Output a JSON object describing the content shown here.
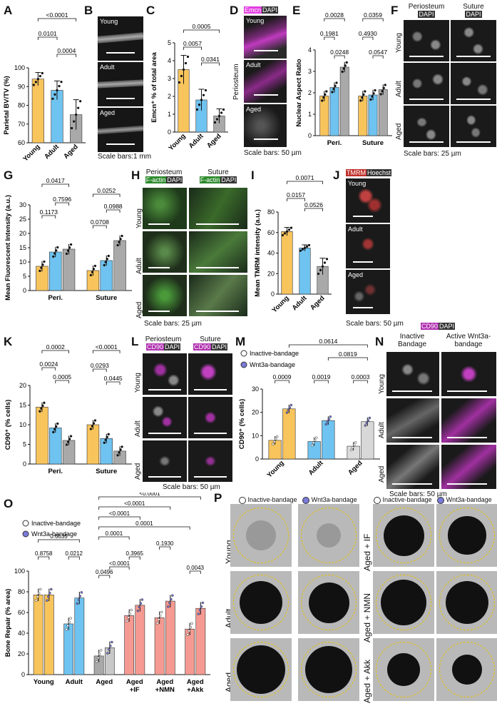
{
  "colors": {
    "young": "#f8c45c",
    "adult": "#6fc3f0",
    "aged": "#a9a9a9",
    "treated": "#f59a92",
    "inactive": "#ffffff",
    "wnt": "#7a7ad8",
    "magenta": "#e33ce1",
    "green": "#4caf50",
    "tmrm": "#e04040"
  },
  "panels": {
    "A": {
      "letter": "A",
      "ylabel": "Parietal BV/TV (%)",
      "groups": [
        "Young",
        "Adult",
        "Aged"
      ],
      "pvals": [
        "<0.0001",
        "0.0101",
        "0.0004"
      ]
    },
    "B": {
      "letter": "B",
      "rows": [
        "Young",
        "Adult",
        "Aged"
      ],
      "scale": "Scale bars:1 mm"
    },
    "C": {
      "letter": "C",
      "ylabel": "Emcn⁺ % of total area",
      "groups": [
        "Young",
        "Adult",
        "Aged"
      ],
      "pvals": [
        "0.0005",
        "0.0057",
        "0.0341"
      ]
    },
    "D": {
      "letter": "D",
      "tag1": "Emcn",
      "tag2": "DAPI",
      "rows": [
        "Young",
        "Adult",
        "Aged"
      ],
      "side": "Periosteum",
      "scale": "Scale bars: 50 µm"
    },
    "E": {
      "letter": "E",
      "ylabel": "Nuclear Aspect Ratio",
      "groups": [
        "Peri.",
        "Suture"
      ],
      "pvals": [
        "0.0028",
        "0.0359",
        "0.1981",
        "0.4930",
        "0.0248",
        "0.0547"
      ]
    },
    "F": {
      "letter": "F",
      "cols": [
        "Periosteum",
        "Suture"
      ],
      "tag": "DAPI",
      "rows": [
        "Young",
        "Adult",
        "Aged"
      ],
      "scale": "Scale bars: 25 µm"
    },
    "G": {
      "letter": "G",
      "ylabel": "Mean Fluorescent Intensity (a.u.)",
      "groups": [
        "Peri.",
        "Suture"
      ],
      "pvals": [
        "0.0417",
        "0.7596",
        "0.0252",
        "0.1173",
        "0.0988",
        "0.0708"
      ]
    },
    "H": {
      "letter": "H",
      "cols": [
        "Periosteum",
        "Suture"
      ],
      "tag1": "F-actin",
      "tag2": "DAPI",
      "rows": [
        "Young",
        "Adult",
        "Aged"
      ],
      "scale": "Scale bars: 25 µm"
    },
    "I": {
      "letter": "I",
      "ylabel": "Mean TMRM intensity (a.u.)",
      "groups": [
        "Young",
        "Adult",
        "Aged"
      ],
      "pvals": [
        "0.0071",
        "0.0157",
        "0.0526"
      ]
    },
    "J": {
      "letter": "J",
      "tag1": "TMRM",
      "tag2": "Hoechst",
      "rows": [
        "Young",
        "Adult",
        "Aged"
      ],
      "scale": "Scale bars: 50 µm"
    },
    "K": {
      "letter": "K",
      "ylabel": "CD90⁺ (% cells)",
      "groups": [
        "Peri.",
        "Suture"
      ],
      "pvals": [
        "0.0002",
        "<0.0001",
        "0.0024",
        "0.0005",
        "0.0293",
        "0.0445"
      ]
    },
    "L": {
      "letter": "L",
      "cols": [
        "Periosteum",
        "Suture"
      ],
      "tag1": "CD90",
      "tag2": "DAPI",
      "rows": [
        "Young",
        "Adult",
        "Aged"
      ],
      "scale": "Scale bars: 50 µm"
    },
    "M": {
      "letter": "M",
      "ylabel": "CD90⁺ (% cells)",
      "groups": [
        "Young",
        "Adult",
        "Aged"
      ],
      "legend": [
        "Inactive-bandage",
        "Wnt3a-bandage"
      ],
      "pvals": [
        "0.0614",
        "0.0819",
        "0.0009",
        "0.0019",
        "0.0003"
      ]
    },
    "N": {
      "letter": "N",
      "tag1": "CD90",
      "tag2": "DAPI",
      "cols": [
        "Inactive Bandage",
        "Active Wnt3a-bandage"
      ],
      "rows": [
        "Young",
        "Adult",
        "Aged"
      ],
      "scale": "Scale bars: 50 µm"
    },
    "O": {
      "letter": "O",
      "ylabel": "Bone Repair (% area)",
      "groups": [
        "Young",
        "Adult",
        "Aged",
        "Aged + IF",
        "Aged +NMN",
        "Aged +Akk"
      ],
      "legend": [
        "Inactive-bandage",
        "Wnt3a-bandage"
      ],
      "pvals": [
        "<0.0001",
        "<0.0001",
        "<0.0001",
        "0.0001",
        "0.0001",
        "0.1930",
        "0.3965",
        "0.0043",
        "0.6635",
        "0.8758",
        "0.0212",
        "0.0496",
        "<0.0001"
      ]
    },
    "P": {
      "letter": "P",
      "legend": [
        "Inactive-bandage",
        "Wnt3a-bandage"
      ],
      "rowsLeft": [
        "Young",
        "Adult",
        "Aged"
      ],
      "rowsRight": [
        "Aged + IF",
        "Aged + NMN",
        "Aged + Akk"
      ]
    }
  },
  "chart_data": [
    {
      "type": "bar",
      "panel": "A",
      "categories": [
        "Young",
        "Adult",
        "Aged"
      ],
      "values": [
        94,
        88,
        75
      ],
      "errors": [
        3.5,
        5,
        8
      ],
      "ylim": [
        60,
        100
      ],
      "yticks": [
        60,
        70,
        80,
        90,
        100
      ]
    },
    {
      "type": "bar",
      "panel": "C",
      "categories": [
        "Young",
        "Adult",
        "Aged"
      ],
      "values": [
        3.5,
        1.8,
        0.9
      ],
      "errors": [
        0.8,
        0.6,
        0.4
      ],
      "ylim": [
        0,
        5
      ],
      "yticks": [
        0,
        1,
        2,
        3,
        4,
        5
      ]
    },
    {
      "type": "bar",
      "panel": "E",
      "categories": [
        "Peri.",
        "Suture"
      ],
      "series": [
        {
          "name": "Young",
          "values": [
            1.85,
            1.85
          ]
        },
        {
          "name": "Adult",
          "values": [
            2.25,
            1.9
          ]
        },
        {
          "name": "Aged",
          "values": [
            3.2,
            2.15
          ]
        }
      ],
      "ylim": [
        0,
        4
      ],
      "yticks": [
        0,
        1,
        2,
        3,
        4
      ]
    },
    {
      "type": "bar",
      "panel": "G",
      "categories": [
        "Peri.",
        "Suture"
      ],
      "series": [
        {
          "name": "Young",
          "values": [
            8.5,
            7
          ]
        },
        {
          "name": "Adult",
          "values": [
            13.5,
            10.5
          ]
        },
        {
          "name": "Aged",
          "values": [
            14.5,
            17.5
          ]
        }
      ],
      "ylim": [
        0,
        30
      ],
      "yticks": [
        0,
        5,
        10,
        15,
        20,
        25,
        30
      ]
    },
    {
      "type": "bar",
      "panel": "I",
      "categories": [
        "Young",
        "Adult",
        "Aged"
      ],
      "values": [
        61,
        45,
        27
      ],
      "errors": [
        4,
        3,
        8
      ],
      "ylim": [
        0,
        80
      ],
      "yticks": [
        0,
        20,
        40,
        60,
        80
      ]
    },
    {
      "type": "bar",
      "panel": "K",
      "categories": [
        "Peri.",
        "Suture"
      ],
      "series": [
        {
          "name": "Young",
          "values": [
            14.5,
            10
          ]
        },
        {
          "name": "Adult",
          "values": [
            9.2,
            6.5
          ]
        },
        {
          "name": "Aged",
          "values": [
            6,
            3.3
          ]
        }
      ],
      "ylim": [
        0,
        20
      ],
      "yticks": [
        0,
        5,
        10,
        15,
        20
      ]
    },
    {
      "type": "bar",
      "panel": "M",
      "categories": [
        "Young",
        "Adult",
        "Aged"
      ],
      "series": [
        {
          "name": "Inactive-bandage",
          "values": [
            8,
            7.5,
            5.5
          ]
        },
        {
          "name": "Wnt3a-bandage",
          "values": [
            21.5,
            16.5,
            16
          ]
        }
      ],
      "ylim": [
        0,
        30
      ],
      "yticks": [
        0,
        10,
        20,
        30
      ]
    },
    {
      "type": "bar",
      "panel": "O",
      "categories": [
        "Young",
        "Adult",
        "Aged",
        "Aged +IF",
        "Aged +NMN",
        "Aged +Akk"
      ],
      "series": [
        {
          "name": "Inactive-bandage",
          "values": [
            77,
            49,
            18,
            57,
            55,
            44
          ]
        },
        {
          "name": "Wnt3a-bandage",
          "values": [
            77,
            74,
            26,
            67,
            71,
            64
          ]
        }
      ],
      "ylim": [
        0,
        100
      ],
      "yticks": [
        0,
        20,
        40,
        60,
        80,
        100
      ]
    }
  ]
}
